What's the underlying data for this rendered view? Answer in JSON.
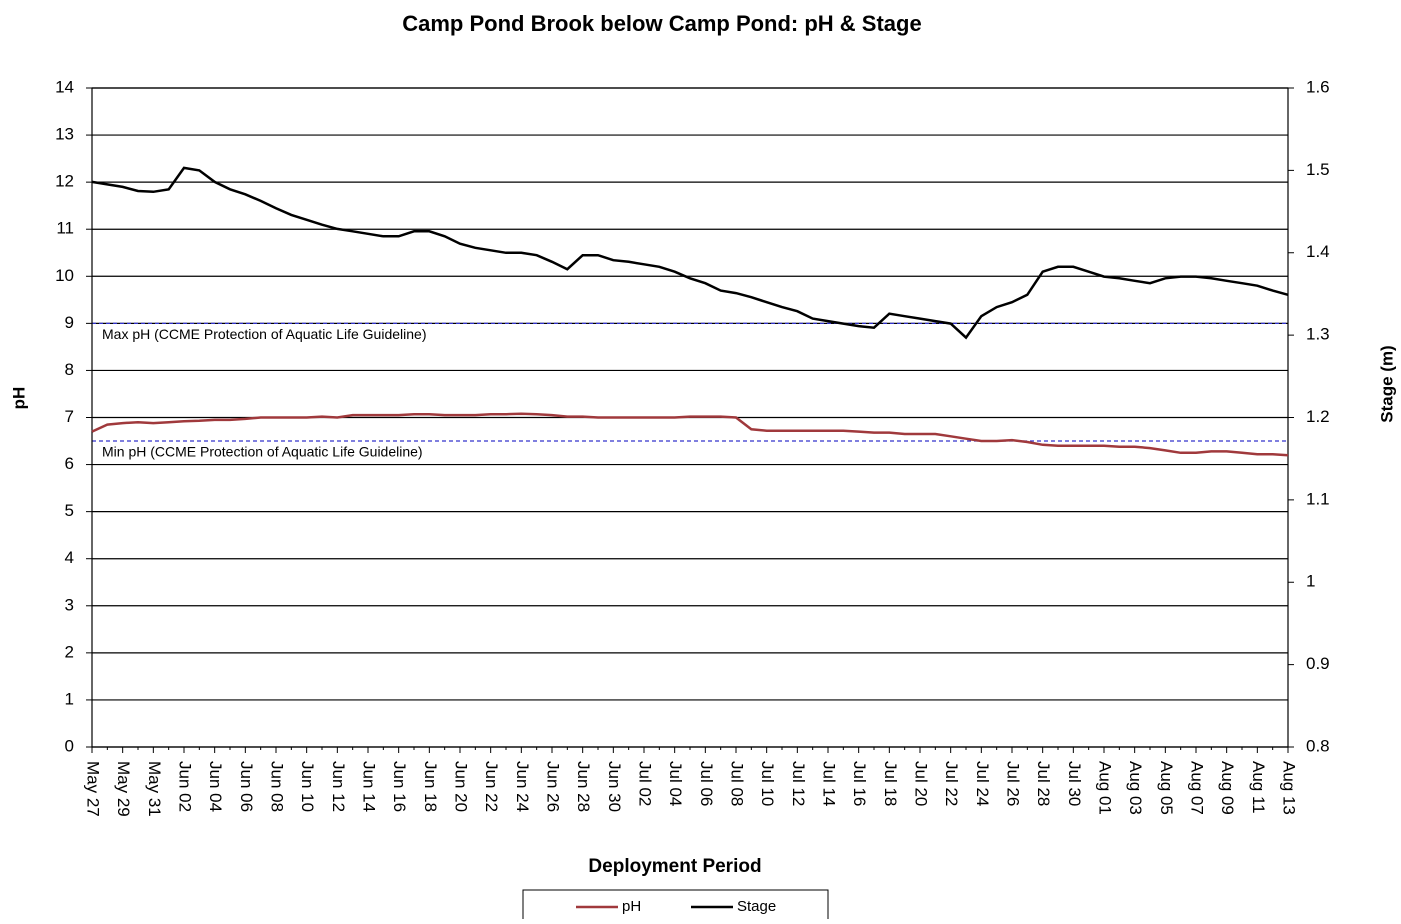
{
  "chart_data": {
    "type": "line",
    "title": "Camp Pond Brook below Camp Pond: pH & Stage",
    "x_label": "Deployment Period",
    "y_label": "pH",
    "y2_label": "Stage (m)",
    "categories": [
      "May 27",
      null,
      "May 29",
      null,
      "May 31",
      null,
      "Jun 02",
      null,
      "Jun 04",
      null,
      "Jun 06",
      null,
      "Jun 08",
      null,
      "Jun 10",
      null,
      "Jun 12",
      null,
      "Jun 14",
      null,
      "Jun 16",
      null,
      "Jun 18",
      null,
      "Jun 20",
      null,
      "Jun 22",
      null,
      "Jun 24",
      null,
      "Jun 26",
      null,
      "Jun 28",
      null,
      "Jun 30",
      null,
      "Jul 02",
      null,
      "Jul 04",
      null,
      "Jul 06",
      null,
      "Jul 08",
      null,
      "Jul 10",
      null,
      "Jul 12",
      null,
      "Jul 14",
      null,
      "Jul 16",
      null,
      "Jul 18",
      null,
      "Jul 20",
      null,
      "Jul 22",
      null,
      "Jul 24",
      null,
      "Jul 26",
      null,
      "Jul 28",
      null,
      "Jul 30",
      null,
      "Aug 01",
      null,
      "Aug 03",
      null,
      "Aug 05",
      null,
      "Aug 07",
      null,
      "Aug 09",
      null,
      "Aug 11",
      null,
      "Aug 13"
    ],
    "series": [
      {
        "name": "pH",
        "color": "#a0393c",
        "values": [
          6.7,
          6.85,
          6.88,
          6.9,
          6.88,
          6.9,
          6.92,
          6.93,
          6.95,
          6.95,
          6.97,
          7.0,
          7.0,
          7.0,
          7.0,
          7.02,
          7.0,
          7.05,
          7.05,
          7.05,
          7.05,
          7.07,
          7.07,
          7.05,
          7.05,
          7.05,
          7.07,
          7.07,
          7.08,
          7.07,
          7.05,
          7.02,
          7.02,
          7.0,
          7.0,
          7.0,
          7.0,
          7.0,
          7.0,
          7.02,
          7.02,
          7.02,
          7.0,
          6.75,
          6.72,
          6.72,
          6.72,
          6.72,
          6.72,
          6.72,
          6.7,
          6.68,
          6.68,
          6.65,
          6.65,
          6.65,
          6.6,
          6.55,
          6.5,
          6.5,
          6.52,
          6.48,
          6.42,
          6.4,
          6.4,
          6.4,
          6.4,
          6.38,
          6.38,
          6.35,
          6.3,
          6.25,
          6.25,
          6.28,
          6.28,
          6.25,
          6.22,
          6.22,
          6.2
        ]
      },
      {
        "name": "Stage",
        "color": "#000000",
        "axis": "y2",
        "values": [
          1.486,
          1.483,
          1.48,
          1.475,
          1.474,
          1.477,
          1.503,
          1.5,
          1.486,
          1.477,
          1.471,
          1.463,
          1.454,
          1.446,
          1.44,
          1.434,
          1.429,
          1.426,
          1.423,
          1.42,
          1.42,
          1.426,
          1.426,
          1.42,
          1.411,
          1.406,
          1.403,
          1.4,
          1.4,
          1.397,
          1.389,
          1.38,
          1.397,
          1.397,
          1.391,
          1.389,
          1.386,
          1.383,
          1.377,
          1.369,
          1.363,
          1.354,
          1.351,
          1.346,
          1.34,
          1.334,
          1.329,
          1.32,
          1.317,
          1.314,
          1.311,
          1.309,
          1.326,
          1.323,
          1.32,
          1.317,
          1.314,
          1.297,
          1.323,
          1.334,
          1.34,
          1.349,
          1.377,
          1.383,
          1.383,
          1.377,
          1.371,
          1.369,
          1.366,
          1.363,
          1.369,
          1.371,
          1.371,
          1.369,
          1.366,
          1.363,
          1.36,
          1.354,
          1.349
        ]
      }
    ],
    "reference_lines": [
      {
        "value": 9,
        "label": "Max pH  (CCME  Protection of Aquatic Life Guideline)",
        "color": "#3333cc"
      },
      {
        "value": 6.5,
        "label": "Min pH  (CCME  Protection of Aquatic Life Guideline)",
        "color": "#3333cc"
      }
    ],
    "ylim": [
      0,
      14
    ],
    "yticks": [
      0,
      1,
      2,
      3,
      4,
      5,
      6,
      7,
      8,
      9,
      10,
      11,
      12,
      13,
      14
    ],
    "y2lim": [
      0.8,
      1.6
    ],
    "y2ticks": [
      0.8,
      0.9,
      1,
      1.1,
      1.2,
      1.3,
      1.4,
      1.5,
      1.6
    ],
    "grid": true,
    "legend": "bottom"
  }
}
